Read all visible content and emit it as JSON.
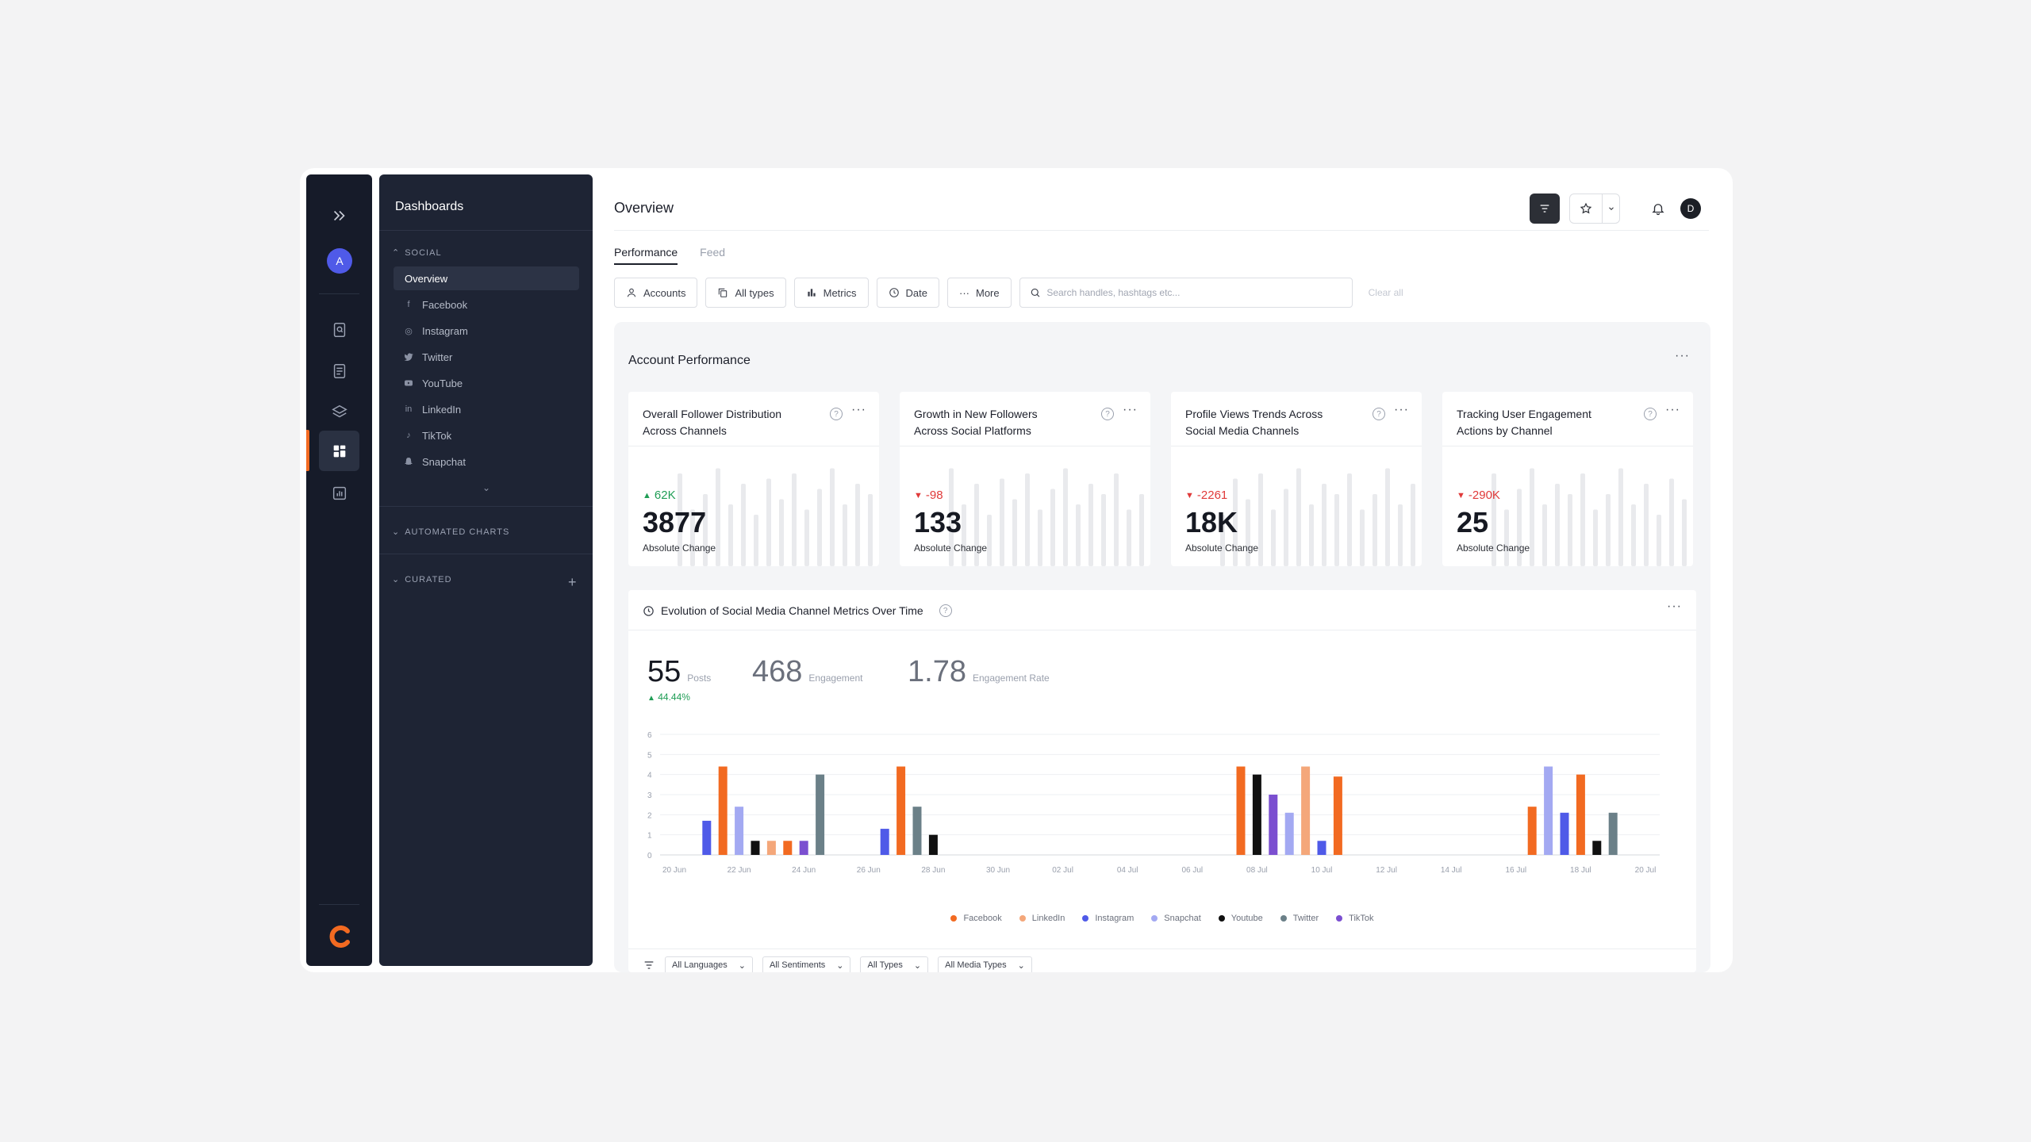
{
  "rail": {
    "avatar": "A",
    "icons": [
      "expand-icon",
      "search-doc-icon",
      "document-icon",
      "layers-icon",
      "dashboard-icon",
      "reports-icon"
    ]
  },
  "sidebar": {
    "title": "Dashboards",
    "social_section": "SOCIAL",
    "items": [
      {
        "label": "Overview",
        "icon": "overview"
      },
      {
        "label": "Facebook",
        "icon": "f"
      },
      {
        "label": "Instagram",
        "icon": "◎"
      },
      {
        "label": "Twitter",
        "icon": "🐦"
      },
      {
        "label": "YouTube",
        "icon": "▶"
      },
      {
        "label": "LinkedIn",
        "icon": "in"
      },
      {
        "label": "TikTok",
        "icon": "♪"
      },
      {
        "label": "Snapchat",
        "icon": "👻"
      }
    ],
    "automated_section": "AUTOMATED CHARTS",
    "curated_section": "CURATED"
  },
  "header": {
    "title": "Overview",
    "user_initial": "D"
  },
  "tabs": [
    {
      "label": "Performance"
    },
    {
      "label": "Feed"
    }
  ],
  "filters": {
    "accounts": "Accounts",
    "types": "All types",
    "metrics": "Metrics",
    "date": "Date",
    "more": "More",
    "search_placeholder": "Search handles, hashtags etc...",
    "clear_all": "Clear all"
  },
  "panel": {
    "title": "Account Performance",
    "cards": [
      {
        "title": "Overall Follower Distribution Across Channels",
        "delta": "62K",
        "direction": "up",
        "value": "3877",
        "label": "Absolute Change"
      },
      {
        "title": "Growth in New Followers Across Social Platforms",
        "delta": "-98",
        "direction": "down",
        "value": "133",
        "label": "Absolute Change"
      },
      {
        "title": "Profile Views Trends Across Social Media Channels",
        "delta": "-2261",
        "direction": "down",
        "value": "18K",
        "label": "Absolute Change"
      },
      {
        "title": "Tracking User Engagement Actions by Channel",
        "delta": "-290K",
        "direction": "down",
        "value": "25",
        "label": "Absolute Change"
      }
    ]
  },
  "evolution": {
    "title": "Evolution of Social Media Channel Metrics Over Time",
    "posts": {
      "value": "55",
      "label": "Posts",
      "delta": "44.44%"
    },
    "engagement": {
      "value": "468",
      "label": "Engagement"
    },
    "engagement_rate": {
      "value": "1.78",
      "label": "Engagement Rate"
    },
    "footer_filters": [
      "All Languages",
      "All Sentiments",
      "All Types",
      "All Media Types"
    ]
  },
  "chart_data": {
    "type": "bar",
    "ylim": [
      0,
      6
    ],
    "yticks": [
      "0",
      "1",
      "2",
      "3",
      "4",
      "5",
      "6"
    ],
    "xticks": [
      "20 Jun",
      "22 Jun",
      "24 Jun",
      "26 Jun",
      "28 Jun",
      "30 Jun",
      "02 Jul",
      "04 Jul",
      "06 Jul",
      "08 Jul",
      "10 Jul",
      "12 Jul",
      "14 Jul",
      "16 Jul",
      "18 Jul",
      "20 Jul"
    ],
    "series_colors": {
      "Facebook": "#f26a21",
      "LinkedIn": "#f4a77a",
      "Instagram": "#4f5ae8",
      "Snapchat": "#a3a9f2",
      "Youtube": "#111111",
      "Twitter": "#6b8088",
      "TikTok": "#7b4fd0"
    },
    "legend": [
      "Facebook",
      "LinkedIn",
      "Instagram",
      "Snapchat",
      "Youtube",
      "Twitter",
      "TikTok"
    ],
    "bars": [
      {
        "day": 21,
        "series": "Instagram",
        "value": 1.7
      },
      {
        "day": 21.5,
        "series": "Facebook",
        "value": 4.4
      },
      {
        "day": 22,
        "series": "Snapchat",
        "value": 2.4
      },
      {
        "day": 22.5,
        "series": "Youtube",
        "value": 0.7
      },
      {
        "day": 23,
        "series": "LinkedIn",
        "value": 0.7
      },
      {
        "day": 23.5,
        "series": "Facebook",
        "value": 0.7
      },
      {
        "day": 24,
        "series": "TikTok",
        "value": 0.7
      },
      {
        "day": 24.5,
        "series": "Twitter",
        "value": 4.0
      },
      {
        "day": 26.5,
        "series": "Instagram",
        "value": 1.3
      },
      {
        "day": 27,
        "series": "Facebook",
        "value": 4.4
      },
      {
        "day": 27.5,
        "series": "Twitter",
        "value": 2.4
      },
      {
        "day": 28,
        "series": "Youtube",
        "value": 1.0
      },
      {
        "day": 37.5,
        "series": "Facebook",
        "value": 4.4
      },
      {
        "day": 38,
        "series": "Youtube",
        "value": 4.0
      },
      {
        "day": 38.5,
        "series": "TikTok",
        "value": 3.0
      },
      {
        "day": 39,
        "series": "Snapchat",
        "value": 2.1
      },
      {
        "day": 39.5,
        "series": "LinkedIn",
        "value": 4.4
      },
      {
        "day": 40,
        "series": "Instagram",
        "value": 0.7
      },
      {
        "day": 40.5,
        "series": "Facebook",
        "value": 3.9
      },
      {
        "day": 46.5,
        "series": "Facebook",
        "value": 2.4
      },
      {
        "day": 47,
        "series": "Snapchat",
        "value": 4.4
      },
      {
        "day": 47.5,
        "series": "Instagram",
        "value": 2.1
      },
      {
        "day": 48,
        "series": "Facebook",
        "value": 4.0
      },
      {
        "day": 48.5,
        "series": "Youtube",
        "value": 0.7
      },
      {
        "day": 49,
        "series": "Twitter",
        "value": 2.1
      }
    ]
  }
}
